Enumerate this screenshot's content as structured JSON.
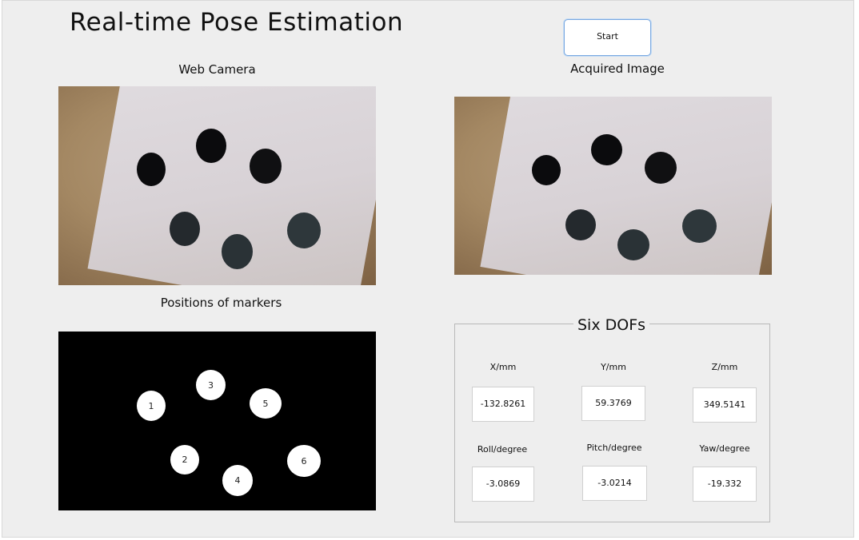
{
  "app": {
    "title": "Real-time Pose Estimation",
    "start_label": "Start"
  },
  "captions": {
    "web_camera": "Web Camera",
    "acquired_image": "Acquired Image",
    "positions": "Positions of markers"
  },
  "markers": {
    "labels": [
      "1",
      "2",
      "3",
      "4",
      "5",
      "6"
    ]
  },
  "dof": {
    "title": "Six DOFs",
    "x_label": "X/mm",
    "y_label": "Y/mm",
    "z_label": "Z/mm",
    "roll_label": "Roll/degree",
    "pitch_label": "Pitch/degree",
    "yaw_label": "Yaw/degree",
    "x_value": "-132.8261",
    "y_value": "59.3769",
    "z_value": "349.5141",
    "roll_value": "-3.0869",
    "pitch_value": "-3.0214",
    "yaw_value": "-19.332"
  },
  "colors": {
    "window_bg": "#eeeeee",
    "button_border": "#79a8e0",
    "binary_bg": "#000000",
    "marker_blob": "#ffffff"
  }
}
